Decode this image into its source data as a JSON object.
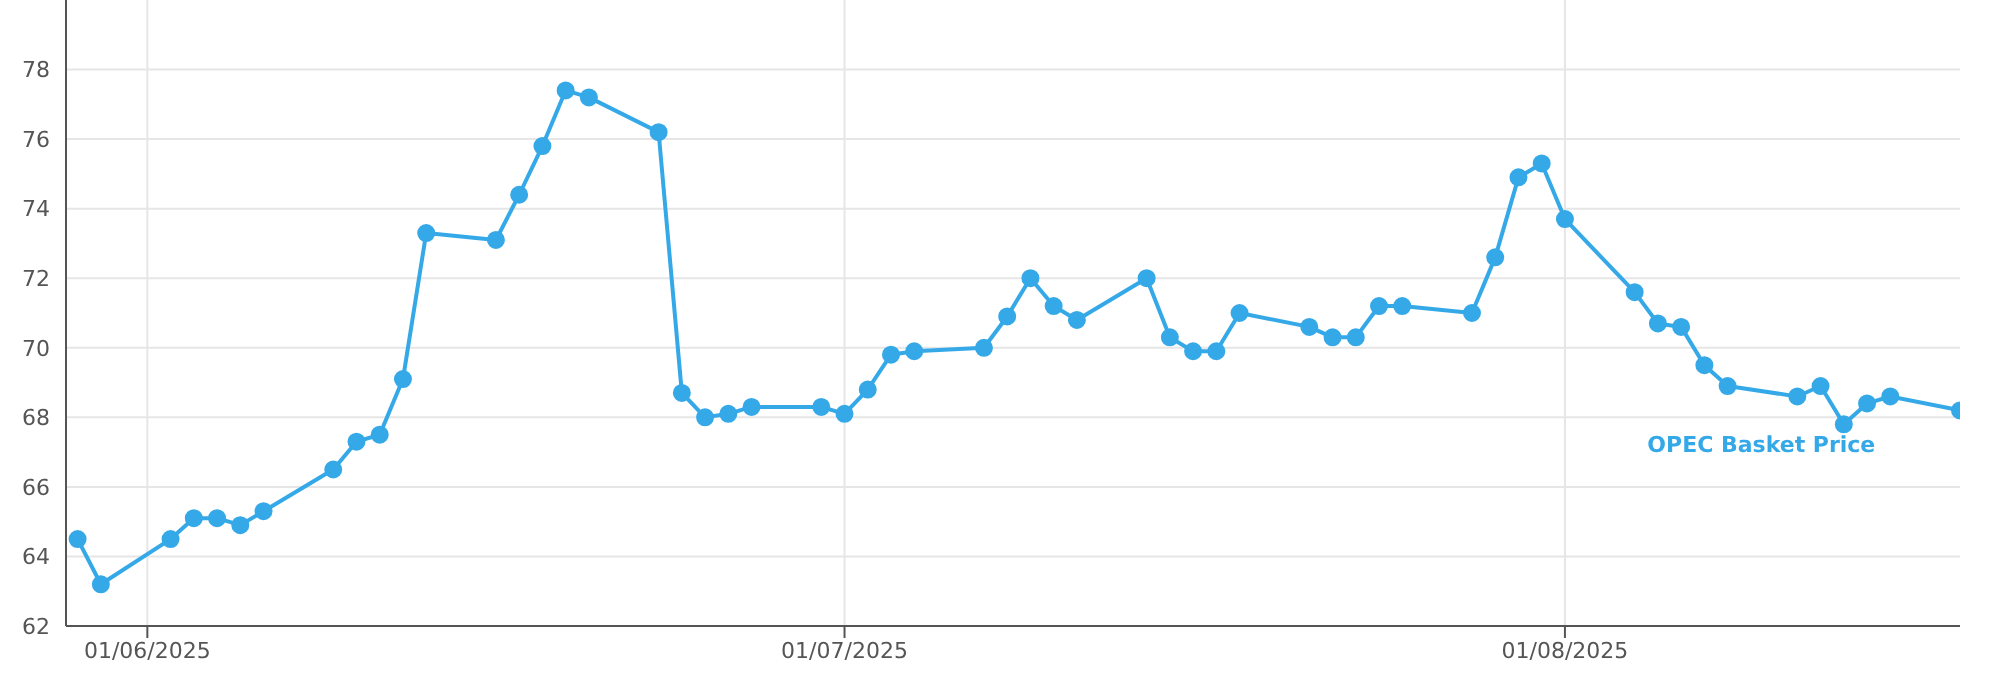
{
  "chart_data": {
    "type": "line",
    "x": [
      "2025-05-29",
      "2025-05-30",
      "2025-06-02",
      "2025-06-03",
      "2025-06-04",
      "2025-06-05",
      "2025-06-06",
      "2025-06-09",
      "2025-06-10",
      "2025-06-11",
      "2025-06-12",
      "2025-06-13",
      "2025-06-16",
      "2025-06-17",
      "2025-06-18",
      "2025-06-19",
      "2025-06-20",
      "2025-06-23",
      "2025-06-24",
      "2025-06-25",
      "2025-06-26",
      "2025-06-27",
      "2025-06-30",
      "2025-07-01",
      "2025-07-02",
      "2025-07-03",
      "2025-07-04",
      "2025-07-07",
      "2025-07-08",
      "2025-07-09",
      "2025-07-10",
      "2025-07-11",
      "2025-07-14",
      "2025-07-15",
      "2025-07-16",
      "2025-07-17",
      "2025-07-18",
      "2025-07-21",
      "2025-07-22",
      "2025-07-23",
      "2025-07-24",
      "2025-07-25",
      "2025-07-28",
      "2025-07-29",
      "2025-07-30",
      "2025-07-31",
      "2025-08-01",
      "2025-08-04",
      "2025-08-05",
      "2025-08-06",
      "2025-08-07",
      "2025-08-08",
      "2025-08-11",
      "2025-08-12",
      "2025-08-13",
      "2025-08-14",
      "2025-08-15",
      "2025-08-18"
    ],
    "series": [
      {
        "name": "OPEC Basket Price",
        "color": "#35a9e8",
        "values": [
          64.5,
          63.2,
          64.5,
          65.1,
          65.1,
          64.9,
          65.3,
          66.5,
          67.3,
          67.5,
          69.1,
          73.3,
          73.1,
          74.4,
          75.8,
          77.4,
          77.2,
          76.2,
          68.7,
          68.0,
          68.1,
          68.3,
          68.3,
          68.1,
          68.8,
          69.8,
          69.9,
          70.0,
          70.9,
          72.0,
          71.2,
          70.8,
          72.0,
          70.3,
          69.9,
          69.9,
          71.0,
          70.6,
          70.3,
          70.3,
          71.2,
          71.2,
          71.0,
          72.6,
          74.9,
          75.3,
          73.7,
          71.6,
          70.7,
          70.6,
          69.5,
          68.9,
          68.6,
          68.9,
          67.8,
          68.4,
          68.6,
          68.2
        ]
      }
    ],
    "xlim": [
      "2025-05-28T12:00",
      "2025-08-18"
    ],
    "xticks": [
      {
        "value": "2025-06-01",
        "label": "01/06/2025"
      },
      {
        "value": "2025-07-01",
        "label": "01/07/2025"
      },
      {
        "value": "2025-08-01",
        "label": "01/08/2025"
      }
    ],
    "ylim": [
      62,
      80
    ],
    "yticks": [
      62,
      64,
      66,
      68,
      70,
      72,
      74,
      76,
      78
    ],
    "grid": true,
    "legend": false,
    "marker": "circle",
    "line_style": "solid"
  }
}
